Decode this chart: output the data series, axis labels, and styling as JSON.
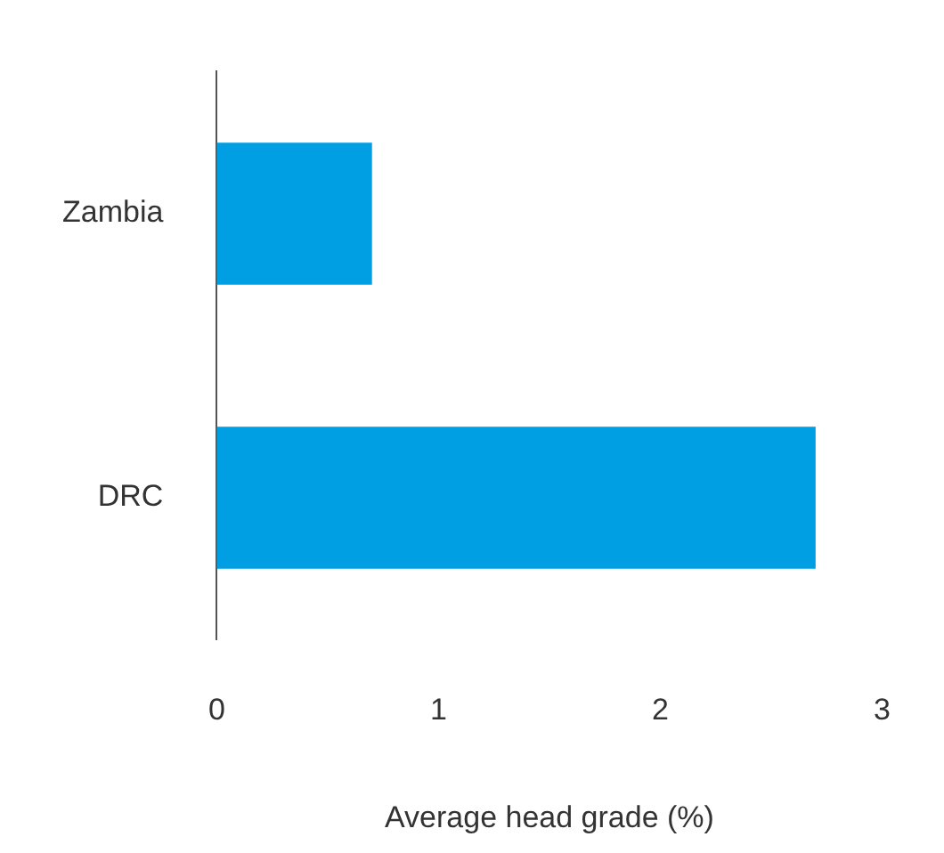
{
  "chart_data": {
    "type": "bar",
    "orientation": "horizontal",
    "categories": [
      "Zambia",
      "DRC"
    ],
    "values": [
      0.7,
      2.7
    ],
    "color": "#009fe3",
    "xlabel": "Average head grade (%)",
    "xlim": [
      0,
      3
    ],
    "xticks": [
      0,
      1,
      2,
      3
    ],
    "grid": false,
    "legend": false
  }
}
